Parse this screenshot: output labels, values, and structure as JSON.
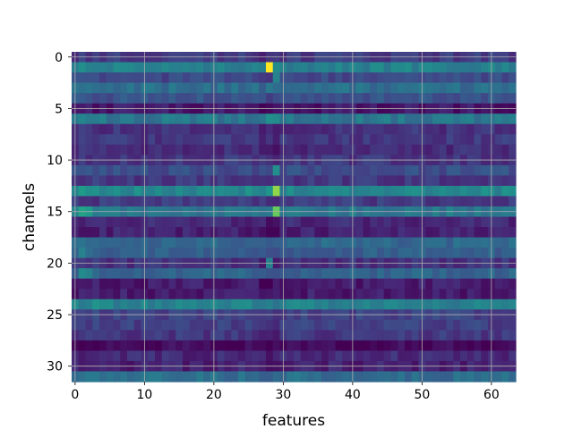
{
  "chart_data": {
    "type": "heatmap",
    "title": "",
    "xlabel": "features",
    "ylabel": "channels",
    "colormap": "viridis",
    "grid": true,
    "rows": 32,
    "cols": 64,
    "xlim": [
      0,
      63
    ],
    "ylim": [
      0,
      31
    ],
    "xticks": [
      0,
      10,
      20,
      30,
      40,
      50,
      60
    ],
    "yticks": [
      0,
      5,
      10,
      15,
      20,
      25,
      30
    ],
    "row_base_levels": [
      0.22,
      0.55,
      0.28,
      0.45,
      0.32,
      0.08,
      0.5,
      0.18,
      0.2,
      0.16,
      0.2,
      0.3,
      0.2,
      0.58,
      0.22,
      0.5,
      0.15,
      0.12,
      0.42,
      0.38,
      0.18,
      0.4,
      0.1,
      0.1,
      0.55,
      0.25,
      0.24,
      0.2,
      0.03,
      0.15,
      0.12,
      0.45
    ],
    "hotspots": [
      {
        "row": 1,
        "col": 28,
        "value": 1.0
      },
      {
        "row": 1,
        "col": 29,
        "value": 0.6
      },
      {
        "row": 2,
        "col": 29,
        "value": 0.55
      },
      {
        "row": 6,
        "col": 28,
        "value": 0.62
      },
      {
        "row": 6,
        "col": 29,
        "value": 0.6
      },
      {
        "row": 11,
        "col": 29,
        "value": 0.62
      },
      {
        "row": 13,
        "col": 29,
        "value": 0.9
      },
      {
        "row": 13,
        "col": 28,
        "value": 0.65
      },
      {
        "row": 13,
        "col": 1,
        "value": 0.68
      },
      {
        "row": 13,
        "col": 2,
        "value": 0.62
      },
      {
        "row": 15,
        "col": 29,
        "value": 0.85
      },
      {
        "row": 15,
        "col": 1,
        "value": 0.72
      },
      {
        "row": 15,
        "col": 2,
        "value": 0.68
      },
      {
        "row": 19,
        "col": 1,
        "value": 0.55
      },
      {
        "row": 21,
        "col": 1,
        "value": 0.6
      },
      {
        "row": 21,
        "col": 2,
        "value": 0.55
      },
      {
        "row": 20,
        "col": 28,
        "value": 0.55
      },
      {
        "row": 24,
        "col": 3,
        "value": 0.65
      },
      {
        "row": 24,
        "col": 4,
        "value": 0.6
      },
      {
        "row": 1,
        "col": 60,
        "value": 0.6
      },
      {
        "row": 1,
        "col": 1,
        "value": 0.62
      },
      {
        "row": 3,
        "col": 28,
        "value": 0.5
      }
    ]
  }
}
